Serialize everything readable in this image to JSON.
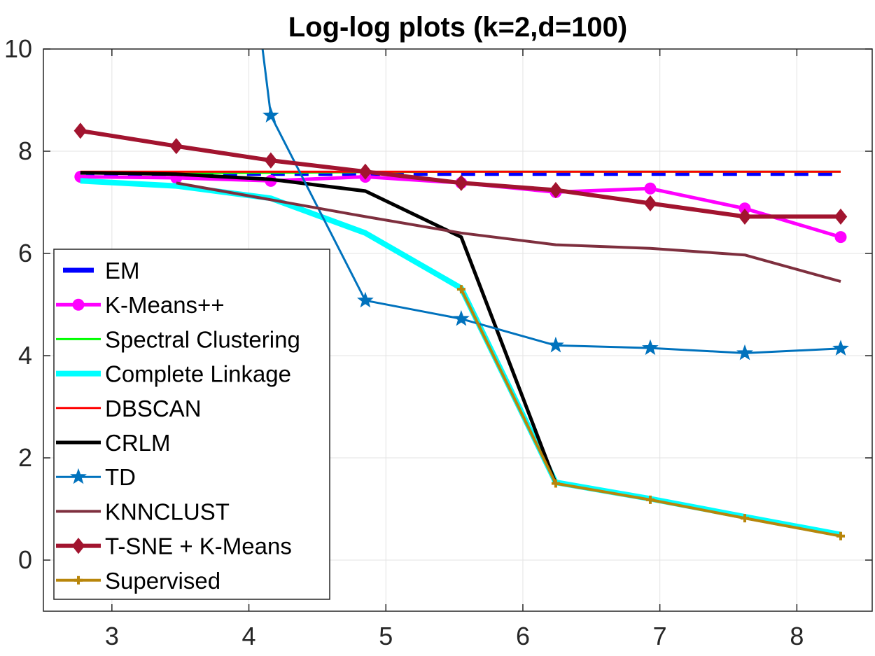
{
  "chart_data": {
    "type": "line",
    "title": "Log-log plots (k=2,d=100)",
    "xlabel": "",
    "ylabel": "",
    "xlim": [
      2.5,
      8.55
    ],
    "ylim": [
      -1,
      10
    ],
    "grid": true,
    "legend_position": "bottom-left",
    "x_ticks": [
      3,
      4,
      5,
      6,
      7,
      8
    ],
    "y_ticks": [
      0,
      2,
      4,
      6,
      8,
      10
    ],
    "x_tick_labels": [
      "3",
      "4",
      "5",
      "6",
      "7",
      "8"
    ],
    "y_tick_labels": [
      "0",
      "2",
      "4",
      "6",
      "8",
      "10"
    ],
    "x": [
      2.77,
      3.47,
      4.16,
      4.85,
      5.55,
      6.24,
      6.93,
      7.62,
      8.32
    ],
    "series": [
      {
        "name": "EM",
        "color": "#0000FF",
        "style": "dashed",
        "width": 5,
        "marker": "none",
        "values": [
          7.55,
          7.55,
          7.55,
          7.55,
          7.55,
          7.55,
          7.55,
          7.55,
          7.55
        ]
      },
      {
        "name": "K-Means++",
        "color": "#FF00FF",
        "style": "solid",
        "width": 5,
        "marker": "circle",
        "values": [
          7.5,
          7.48,
          7.42,
          7.5,
          7.38,
          7.2,
          7.27,
          6.88,
          6.32
        ]
      },
      {
        "name": "Spectral Clustering",
        "color": "#00FF00",
        "style": "solid",
        "width": 3,
        "marker": "none",
        "values": [
          7.56,
          7.57,
          7.58,
          7.59,
          7.6,
          7.6,
          7.6,
          7.6,
          7.6
        ]
      },
      {
        "name": "Complete Linkage",
        "color": "#00FFFF",
        "style": "solid",
        "width": 8,
        "marker": "none",
        "values": [
          7.42,
          7.32,
          7.08,
          6.4,
          5.32,
          1.52,
          1.2,
          0.85,
          0.5
        ]
      },
      {
        "name": "DBSCAN",
        "color": "#FF0000",
        "style": "solid",
        "width": 3,
        "marker": "none",
        "values": [
          7.6,
          7.6,
          7.6,
          7.6,
          7.6,
          7.6,
          7.6,
          7.6,
          7.6
        ]
      },
      {
        "name": "CRLM",
        "color": "#000000",
        "style": "solid",
        "width": 5,
        "marker": "none",
        "values": [
          7.58,
          7.55,
          7.45,
          7.22,
          6.32,
          1.5,
          null,
          null,
          null
        ]
      },
      {
        "name": "TD",
        "color": "#0072BD",
        "style": "solid",
        "width": 3,
        "marker": "star",
        "values": [
          null,
          null,
          8.7,
          5.08,
          4.72,
          4.2,
          4.15,
          4.05,
          4.14
        ]
      },
      {
        "name": "KNNCLUST",
        "color": "#7E2F3E",
        "style": "solid",
        "width": 4,
        "marker": "none",
        "values": [
          null,
          7.38,
          7.05,
          6.72,
          6.4,
          6.17,
          6.1,
          5.97,
          5.45
        ]
      },
      {
        "name": "T-SNE + K-Means",
        "color": "#A2142F",
        "style": "solid",
        "width": 6,
        "marker": "diamond",
        "values": [
          8.4,
          8.1,
          7.82,
          7.6,
          7.38,
          7.24,
          6.98,
          6.72,
          6.72
        ]
      },
      {
        "name": "Supervised",
        "color": "#B8860B",
        "style": "solid",
        "width": 4,
        "marker": "plus",
        "values": [
          null,
          null,
          null,
          null,
          5.3,
          1.5,
          1.18,
          0.82,
          0.47
        ]
      }
    ],
    "extra_segments": [
      {
        "series": "TD",
        "x": [
          4.1,
          4.16
        ],
        "values": [
          10,
          8.7
        ]
      }
    ]
  }
}
